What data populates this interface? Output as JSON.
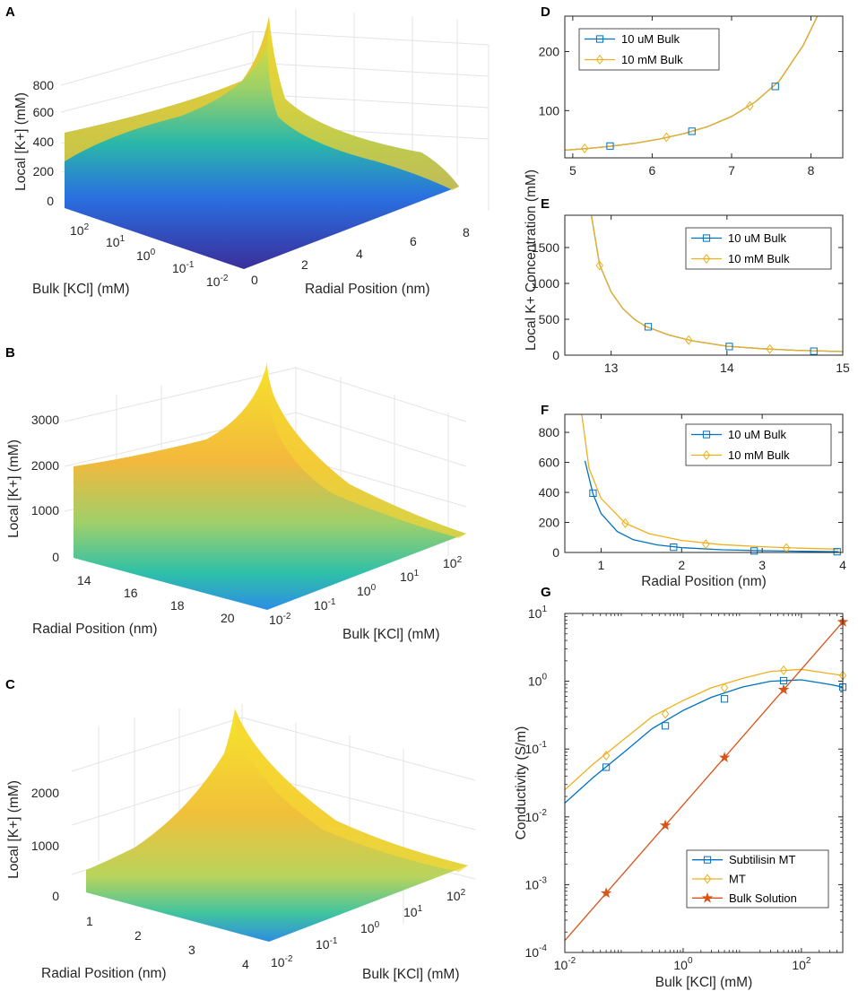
{
  "colors": {
    "blue": "#0072BD",
    "yellow": "#EDB120",
    "orange": "#D95319"
  },
  "icons": {
    "square": "square-marker-icon",
    "diamond": "diamond-marker-icon",
    "star": "star-marker-icon"
  },
  "panels3d": [
    {
      "label": "A",
      "zlabel": "Local [K+] (mM)",
      "zticks": [
        "0",
        "200",
        "400",
        "600",
        "800"
      ],
      "left_axis": {
        "label": "Bulk [KCl] (mM)",
        "ticks": [
          [
            "10",
            "2"
          ],
          [
            "10",
            "1"
          ],
          [
            "10",
            "0"
          ],
          [
            "10",
            "-1"
          ],
          [
            "10",
            "-2"
          ]
        ]
      },
      "right_axis": {
        "label": "Radial Position (nm)",
        "ticks": [
          "0",
          "2",
          "4",
          "6",
          "8"
        ]
      }
    },
    {
      "label": "B",
      "zlabel": "Local [K+] (mM)",
      "zticks": [
        "0",
        "1000",
        "2000",
        "3000"
      ],
      "left_axis": {
        "label": "Radial Position (nm)",
        "ticks": [
          "14",
          "16",
          "18",
          "20"
        ]
      },
      "right_axis": {
        "label": "Bulk [KCl] (mM)",
        "ticks": [
          [
            "10",
            "-2"
          ],
          [
            "10",
            "-1"
          ],
          [
            "10",
            "0"
          ],
          [
            "10",
            "1"
          ],
          [
            "10",
            "2"
          ]
        ]
      }
    },
    {
      "label": "C",
      "zlabel": "Local [K+] (mM)",
      "zticks": [
        "0",
        "1000",
        "2000"
      ],
      "left_axis": {
        "label": "Radial Position (nm)",
        "ticks": [
          "1",
          "2",
          "3",
          "4"
        ]
      },
      "right_axis": {
        "label": "Bulk [KCl] (mM)",
        "ticks": [
          [
            "10",
            "-2"
          ],
          [
            "10",
            "-1"
          ],
          [
            "10",
            "0"
          ],
          [
            "10",
            "1"
          ],
          [
            "10",
            "2"
          ]
        ]
      }
    }
  ],
  "shared_ylabel": "Local K+ Concentration (mM)",
  "chart_data": [
    {
      "id": "D",
      "label": "D",
      "type": "line",
      "xlim": [
        4.9,
        8.4
      ],
      "ylim": [
        20,
        260
      ],
      "xticks": [
        5,
        6,
        7,
        8
      ],
      "yticks": [
        100,
        200
      ],
      "xlabel": "",
      "ylabel": "",
      "legend": [
        "10 uM Bulk",
        "10 mM Bulk"
      ],
      "series": [
        {
          "name": "10 uM Bulk",
          "color": "blue",
          "marker": "square",
          "x": [
            4.9,
            5.2,
            5.5,
            5.8,
            6.1,
            6.4,
            6.7,
            7.0,
            7.3,
            7.6,
            7.9,
            8.08
          ],
          "y": [
            33,
            36,
            40,
            45,
            52,
            61,
            73,
            90,
            115,
            150,
            210,
            260
          ],
          "markers_x": [
            5.47,
            6.5,
            7.55
          ],
          "markers_y": [
            40,
            65,
            141
          ]
        },
        {
          "name": "10 mM Bulk",
          "color": "yellow",
          "marker": "diamond",
          "x": [
            4.9,
            5.2,
            5.5,
            5.8,
            6.1,
            6.4,
            6.7,
            7.0,
            7.3,
            7.6,
            7.9,
            8.08
          ],
          "y": [
            33,
            36,
            40,
            45,
            52,
            61,
            73,
            90,
            115,
            150,
            210,
            260
          ],
          "markers_x": [
            5.15,
            6.18,
            7.23
          ],
          "markers_y": [
            36,
            55,
            108
          ]
        }
      ]
    },
    {
      "id": "E",
      "label": "E",
      "type": "line",
      "xlim": [
        12.6,
        15
      ],
      "ylim": [
        0,
        1950
      ],
      "xticks": [
        13,
        14,
        15
      ],
      "yticks": [
        0,
        500,
        1000,
        1500
      ],
      "xlabel": "",
      "ylabel": "",
      "legend": [
        "10 uM Bulk",
        "10 mM Bulk"
      ],
      "series": [
        {
          "name": "10 uM Bulk",
          "color": "blue",
          "marker": "square",
          "x": [
            12.83,
            12.9,
            13.0,
            13.1,
            13.2,
            13.3,
            13.5,
            13.7,
            14.0,
            14.3,
            14.6,
            15.0
          ],
          "y": [
            1940,
            1260,
            880,
            650,
            500,
            400,
            280,
            200,
            125,
            90,
            68,
            50
          ],
          "markers_x": [
            13.32,
            14.02,
            14.75
          ],
          "markers_y": [
            395,
            120,
            55
          ]
        },
        {
          "name": "10 mM Bulk",
          "color": "yellow",
          "marker": "diamond",
          "x": [
            12.83,
            12.9,
            13.0,
            13.1,
            13.2,
            13.3,
            13.5,
            13.7,
            14.0,
            14.3,
            14.6,
            15.0
          ],
          "y": [
            1940,
            1260,
            880,
            650,
            500,
            400,
            280,
            200,
            125,
            90,
            68,
            50
          ],
          "markers_x": [
            12.9,
            13.67,
            14.37
          ],
          "markers_y": [
            1250,
            210,
            85
          ]
        }
      ]
    },
    {
      "id": "F",
      "label": "F",
      "type": "line",
      "xlim": [
        0.55,
        4
      ],
      "ylim": [
        0,
        920
      ],
      "xticks": [
        1,
        2,
        3,
        4
      ],
      "yticks": [
        0,
        200,
        400,
        600,
        800
      ],
      "xlabel": "Radial Position (nm)",
      "ylabel": "",
      "legend": [
        "10 uM Bulk",
        "10 mM Bulk"
      ],
      "series": [
        {
          "name": "10 uM Bulk",
          "color": "blue",
          "marker": "square",
          "x": [
            0.8,
            0.9,
            1.0,
            1.2,
            1.4,
            1.7,
            2.0,
            2.5,
            3.0,
            3.5,
            3.95
          ],
          "y": [
            610,
            390,
            260,
            140,
            85,
            50,
            32,
            18,
            12,
            8,
            5
          ],
          "markers_x": [
            0.9,
            1.9,
            2.9,
            3.93
          ],
          "markers_y": [
            395,
            35,
            10,
            5
          ]
        },
        {
          "name": "10 mM Bulk",
          "color": "yellow",
          "marker": "diamond",
          "x": [
            0.76,
            0.85,
            1.0,
            1.3,
            1.6,
            2.0,
            2.5,
            3.0,
            3.5,
            3.95
          ],
          "y": [
            920,
            560,
            360,
            195,
            125,
            80,
            52,
            38,
            28,
            22
          ],
          "markers_x": [
            1.3,
            2.3,
            3.3
          ],
          "markers_y": [
            195,
            55,
            30
          ]
        }
      ]
    },
    {
      "id": "G",
      "label": "G",
      "type": "line",
      "scale": "log",
      "xlim": [
        0.01,
        500
      ],
      "ylim": [
        0.0001,
        10
      ],
      "xticks": [
        [
          "10",
          "-2"
        ],
        [
          "10",
          "0"
        ],
        [
          "10",
          "2"
        ]
      ],
      "yticks": [
        [
          "10",
          "-4"
        ],
        [
          "10",
          "-3"
        ],
        [
          "10",
          "-2"
        ],
        [
          "10",
          "-1"
        ],
        [
          "10",
          "0"
        ],
        [
          "10",
          "1"
        ]
      ],
      "xlabel": "Bulk [KCl] (mM)",
      "ylabel": "Conductivity (S/m)",
      "legend": [
        "Subtilisin MT",
        "MT",
        "Bulk Solution"
      ],
      "series": [
        {
          "name": "Subtilisin MT",
          "color": "blue",
          "marker": "square",
          "x": [
            0.01,
            0.03,
            0.1,
            0.3,
            1,
            3,
            10,
            30,
            100,
            300,
            500
          ],
          "y": [
            0.016,
            0.038,
            0.09,
            0.2,
            0.37,
            0.58,
            0.82,
            1.0,
            1.05,
            0.9,
            0.82
          ],
          "markers_x": [
            0.05,
            0.5,
            5,
            50,
            500
          ],
          "markers_y": [
            0.054,
            0.22,
            0.55,
            1.02,
            0.82
          ]
        },
        {
          "name": "MT",
          "color": "yellow",
          "marker": "diamond",
          "x": [
            0.01,
            0.03,
            0.1,
            0.3,
            1,
            3,
            10,
            30,
            100,
            300,
            500
          ],
          "y": [
            0.025,
            0.06,
            0.14,
            0.3,
            0.52,
            0.8,
            1.1,
            1.4,
            1.5,
            1.3,
            1.22
          ],
          "markers_x": [
            0.05,
            0.5,
            5,
            50,
            500
          ],
          "markers_y": [
            0.08,
            0.33,
            0.8,
            1.45,
            1.22
          ]
        },
        {
          "name": "Bulk Solution",
          "color": "orange",
          "marker": "star",
          "x": [
            0.01,
            500
          ],
          "y": [
            0.00015,
            7.5
          ],
          "markers_x": [
            0.05,
            0.5,
            5,
            50,
            500
          ],
          "markers_y": [
            0.00075,
            0.0075,
            0.075,
            0.75,
            7.5
          ]
        }
      ]
    }
  ]
}
